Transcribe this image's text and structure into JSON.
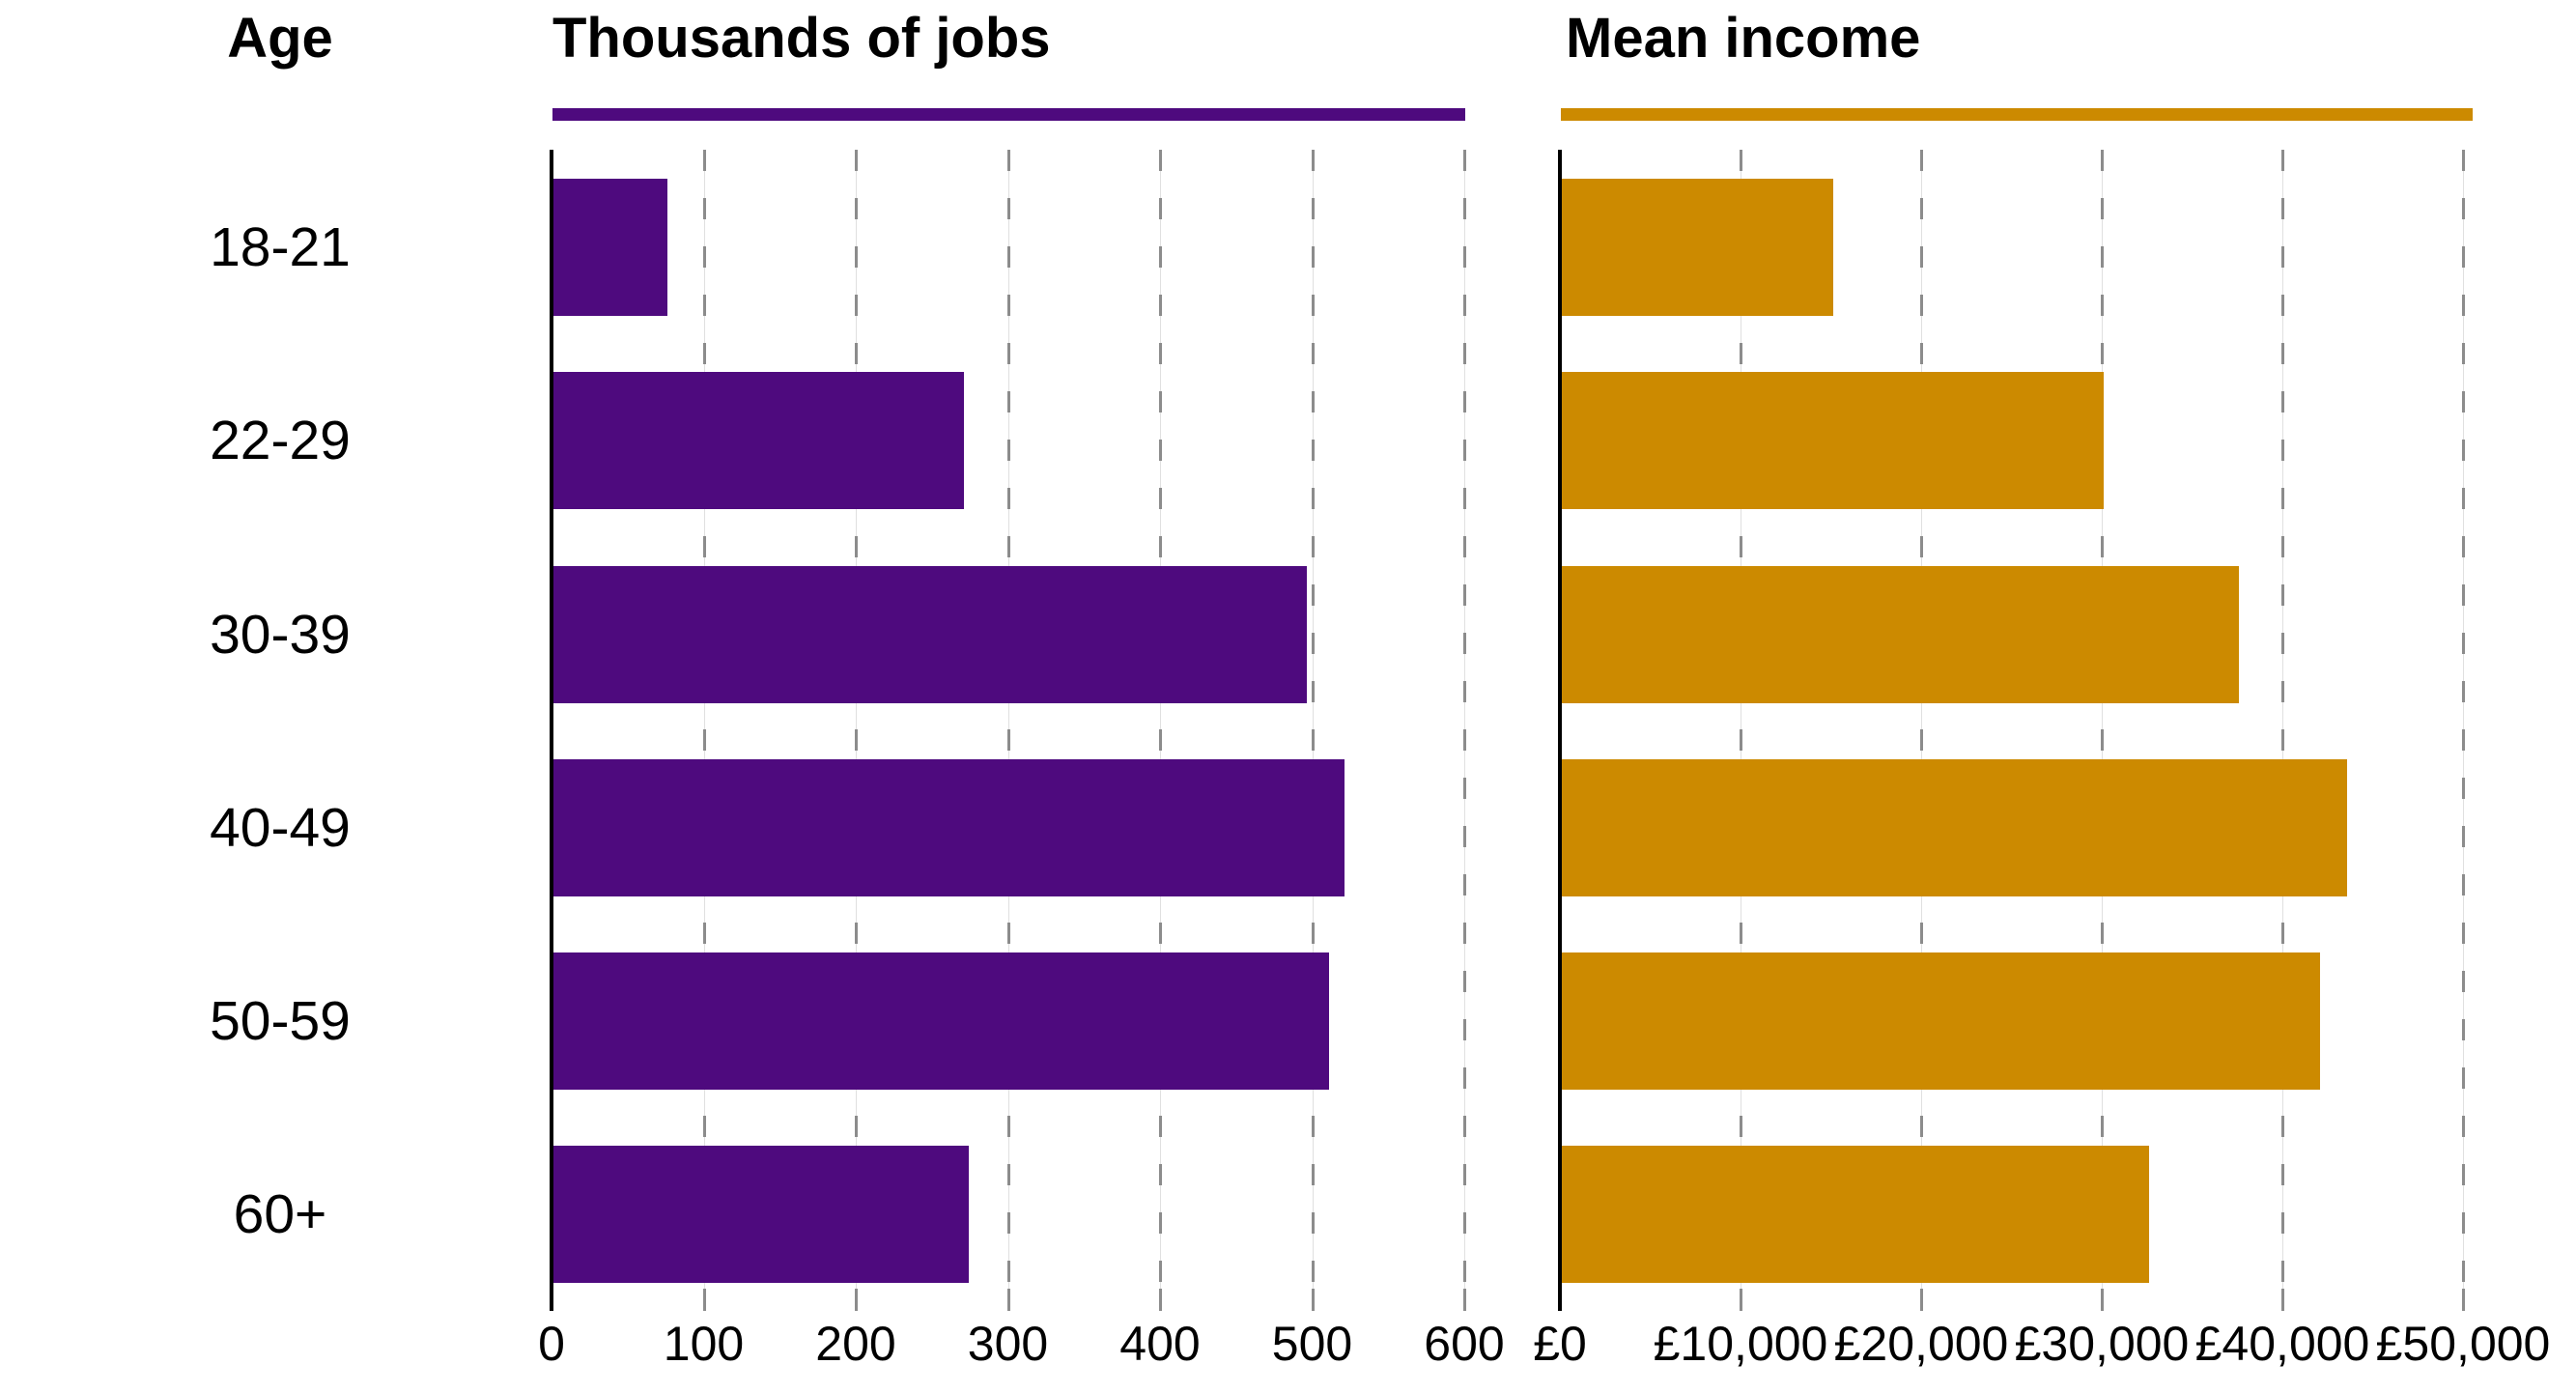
{
  "headers": {
    "age_column": "Age",
    "jobs_panel": "Thousands of jobs",
    "income_panel": "Mean income"
  },
  "colors": {
    "jobs_bar": "#4e0a7e",
    "income_bar": "#cc8a00",
    "grid_dash": "#8c8c8c",
    "grid_faint": "#e0e0e0",
    "axis": "#000000",
    "text": "#000000"
  },
  "chart_data": [
    {
      "type": "bar",
      "orientation": "horizontal",
      "title": "Thousands of jobs",
      "categories": [
        "18-21",
        "22-29",
        "30-39",
        "40-49",
        "50-59",
        "60+"
      ],
      "values": [
        75,
        270,
        495,
        520,
        510,
        273
      ],
      "xlim": [
        0,
        600
      ],
      "tick_step": 100,
      "tick_labels": [
        "0",
        "100",
        "200",
        "300",
        "400",
        "500",
        "600"
      ],
      "grid": true,
      "gridline_style": "dashed",
      "bar_color": "#4e0a7e",
      "ylabel": "Age",
      "xlabel": ""
    },
    {
      "type": "bar",
      "orientation": "horizontal",
      "title": "Mean income",
      "categories": [
        "18-21",
        "22-29",
        "30-39",
        "40-49",
        "50-59",
        "60+"
      ],
      "values": [
        15000,
        30000,
        37500,
        43500,
        42000,
        32500
      ],
      "xlim": [
        0,
        50000
      ],
      "tick_step": 10000,
      "tick_labels": [
        "£0",
        "£10,000",
        "£20,000",
        "£30,000",
        "£40,000",
        "£50,000"
      ],
      "grid": true,
      "gridline_style": "dashed",
      "bar_color": "#cc8a00",
      "ylabel": "Age",
      "xlabel": ""
    }
  ]
}
